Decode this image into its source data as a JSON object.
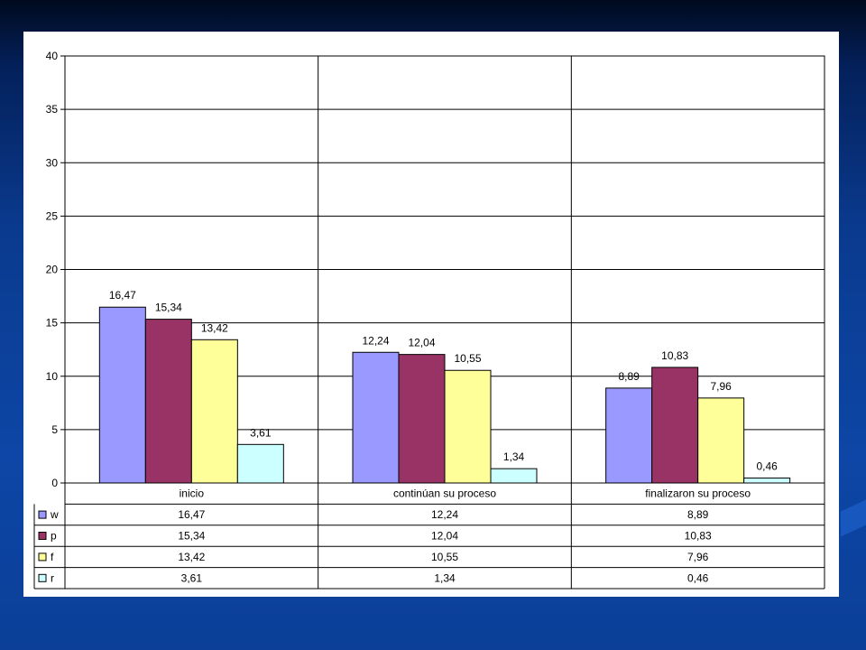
{
  "chart_data": {
    "type": "bar",
    "categories": [
      "inicio",
      "continúan su proceso",
      "finalizaron su proceso"
    ],
    "series": [
      {
        "name": "w",
        "color": "#9999ff",
        "values": [
          16.47,
          12.24,
          8.89
        ],
        "labels": [
          "16,47",
          "12,24",
          "8,89"
        ]
      },
      {
        "name": "p",
        "color": "#993366",
        "values": [
          15.34,
          12.04,
          10.83
        ],
        "labels": [
          "15,34",
          "12,04",
          "10,83"
        ]
      },
      {
        "name": "f",
        "color": "#ffff99",
        "values": [
          13.42,
          10.55,
          7.96
        ],
        "labels": [
          "13,42",
          "10,55",
          "7,96"
        ]
      },
      {
        "name": "r",
        "color": "#ccffff",
        "values": [
          3.61,
          1.34,
          0.46
        ],
        "labels": [
          "3,61",
          "1,34",
          "0,46"
        ]
      }
    ],
    "ylim": [
      0,
      40
    ],
    "yticks": [
      0,
      5,
      10,
      15,
      20,
      25,
      30,
      35,
      40
    ],
    "grid": true,
    "data_table": true
  }
}
